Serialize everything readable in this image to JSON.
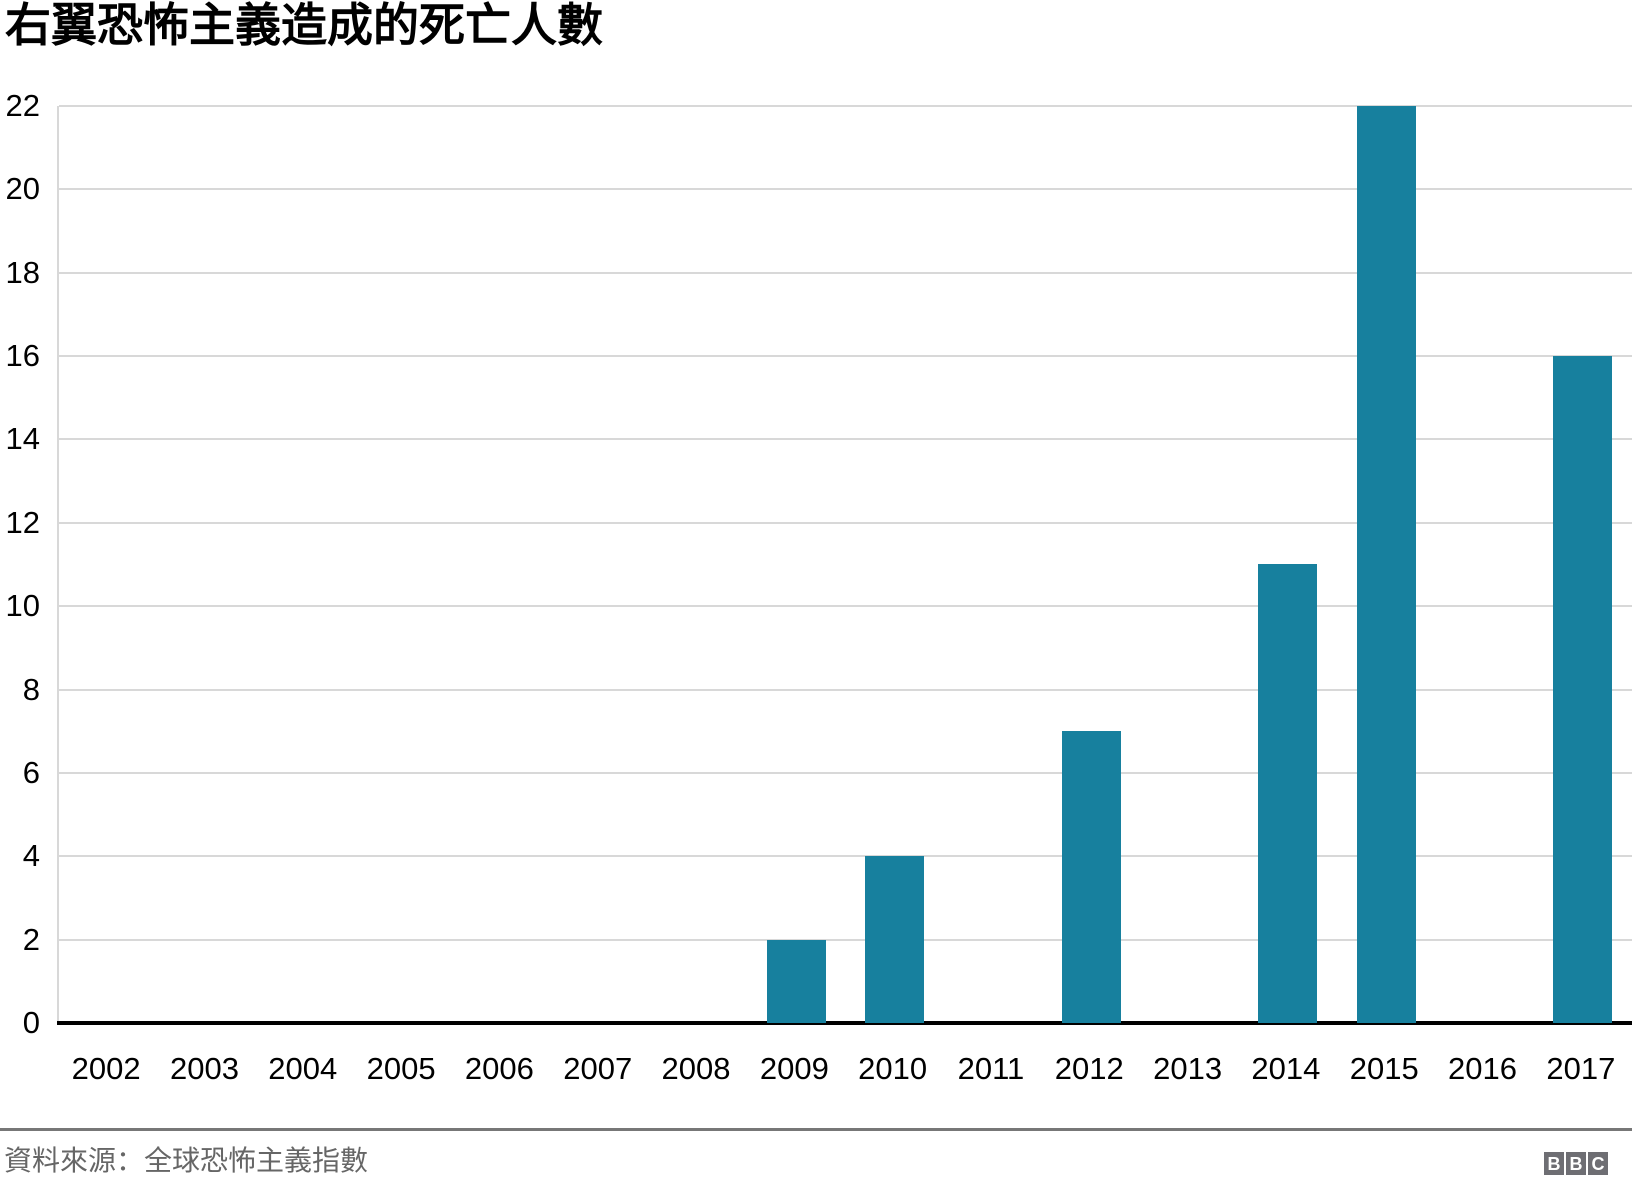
{
  "chart_data": {
    "type": "bar",
    "title": "右翼恐怖主義造成的死亡人數",
    "categories": [
      "2002",
      "2003",
      "2004",
      "2005",
      "2006",
      "2007",
      "2008",
      "2009",
      "2010",
      "2011",
      "2012",
      "2013",
      "2014",
      "2015",
      "2016",
      "2017"
    ],
    "values": [
      0,
      0,
      0,
      0,
      0,
      0,
      0,
      2,
      4,
      0,
      7,
      0,
      11,
      22,
      0,
      16
    ],
    "xlabel": "",
    "ylabel": "",
    "ylim": [
      0,
      22
    ],
    "ytick_step": 2,
    "grid": true,
    "legend_position": "none"
  },
  "footer": {
    "source": "資料來源：全球恐怖主義指數",
    "logo_letters": [
      "B",
      "B",
      "C"
    ]
  },
  "colors": {
    "bar": "#17809E",
    "gridline": "#D8D8D8",
    "axis_line": "#000000",
    "tick_label": "#000000",
    "title": "#000000",
    "source_text": "#666666",
    "divider": "#777777",
    "logo_box": "#6E6E73",
    "logo_letter": "#FFFFFF",
    "background": "#FFFFFF"
  }
}
